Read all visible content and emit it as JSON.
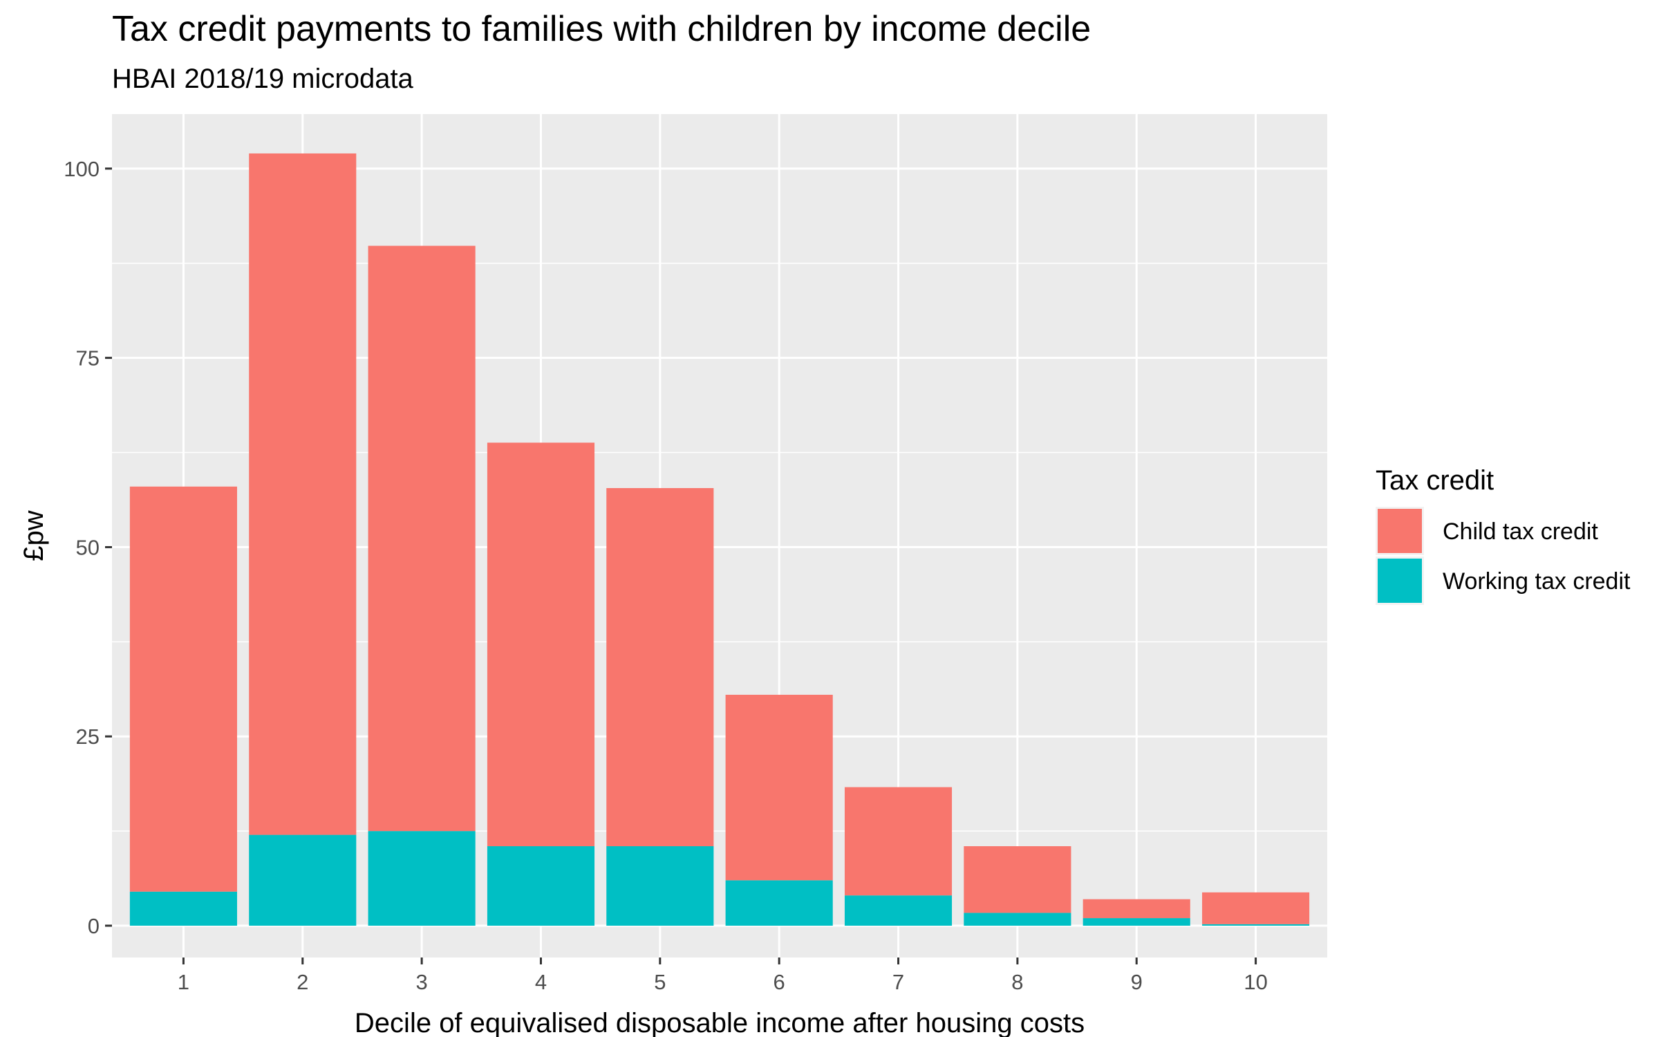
{
  "chart_data": {
    "type": "bar",
    "stacked": true,
    "title": "Tax credit payments to families with children by income decile",
    "subtitle": "HBAI 2018/19 microdata",
    "xlabel": "Decile of equivalised disposable income after housing costs",
    "ylabel": "£pw",
    "categories": [
      "1",
      "2",
      "3",
      "4",
      "5",
      "6",
      "7",
      "8",
      "9",
      "10"
    ],
    "series": [
      {
        "name": "Working tax credit",
        "color": "#00BFC4",
        "values": [
          4.5,
          12.0,
          12.5,
          10.5,
          10.5,
          6.0,
          4.0,
          1.7,
          1.0,
          0.2
        ]
      },
      {
        "name": "Child tax credit",
        "color": "#F8766D",
        "values": [
          53.5,
          90.0,
          77.3,
          53.3,
          47.3,
          24.5,
          14.3,
          8.8,
          2.5,
          4.2
        ]
      }
    ],
    "ylim": [
      -4.2,
      107.2
    ],
    "yticks": [
      0,
      25,
      50,
      75,
      100
    ],
    "grid": true,
    "panel_background": "#EBEBEB",
    "legend": {
      "title": "Tax credit",
      "position": "right",
      "items": [
        "Child tax credit",
        "Working tax credit"
      ]
    }
  }
}
